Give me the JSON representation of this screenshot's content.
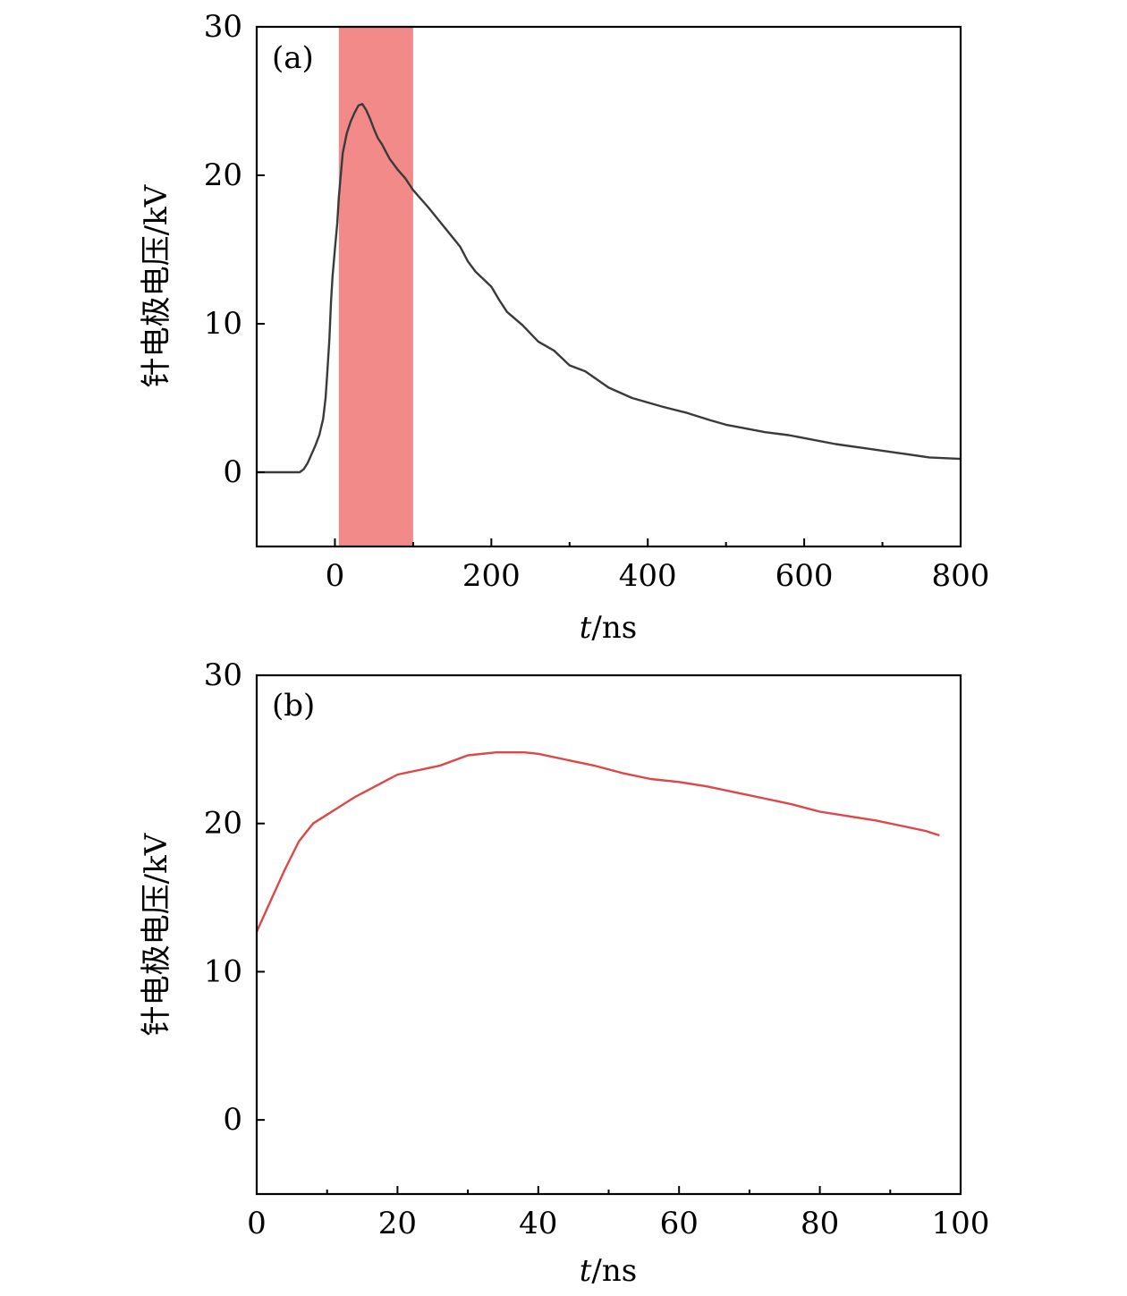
{
  "chart_data": [
    {
      "type": "line",
      "panel_label": "(a)",
      "xlabel_var": "t",
      "xlabel_unit": "/ns",
      "ylabel": "针电极电压/kV",
      "xlim": [
        -100,
        800
      ],
      "ylim": [
        -5,
        30
      ],
      "x_ticks": [
        0,
        200,
        400,
        600,
        800
      ],
      "x_minor_ticks": [
        100,
        300,
        500,
        700
      ],
      "y_ticks": [
        0,
        10,
        20,
        30
      ],
      "highlight_span": {
        "x0": 5,
        "x1": 100,
        "color": "#f38a8a"
      },
      "series": [
        {
          "color": "#3a3a3a",
          "x": [
            -100,
            -60,
            -45,
            -40,
            -35,
            -30,
            -25,
            -20,
            -15,
            -12,
            -10,
            -7,
            -5,
            -3,
            0,
            3,
            5,
            8,
            10,
            15,
            20,
            25,
            30,
            35,
            40,
            45,
            50,
            55,
            60,
            65,
            70,
            80,
            90,
            100,
            120,
            140,
            160,
            170,
            180,
            200,
            210,
            220,
            240,
            260,
            280,
            300,
            320,
            350,
            380,
            400,
            420,
            450,
            480,
            500,
            520,
            550,
            580,
            600,
            640,
            680,
            720,
            760,
            800
          ],
          "y": [
            0,
            0,
            0,
            0.2,
            0.6,
            1.2,
            1.8,
            2.5,
            3.6,
            5.0,
            6.5,
            9.0,
            11.5,
            13.2,
            15.0,
            16.8,
            18.5,
            20.3,
            21.5,
            22.8,
            23.6,
            24.2,
            24.7,
            24.8,
            24.4,
            23.8,
            23.1,
            22.5,
            22.1,
            21.6,
            21.1,
            20.4,
            19.8,
            19.0,
            17.8,
            16.5,
            15.2,
            14.2,
            13.5,
            12.5,
            11.6,
            10.8,
            9.9,
            8.8,
            8.2,
            7.2,
            6.8,
            5.7,
            5.0,
            4.7,
            4.4,
            4.0,
            3.5,
            3.2,
            3.0,
            2.7,
            2.5,
            2.3,
            1.9,
            1.6,
            1.3,
            1.0,
            0.9
          ]
        }
      ]
    },
    {
      "type": "line",
      "panel_label": "(b)",
      "xlabel_var": "t",
      "xlabel_unit": "/ns",
      "ylabel": "针电极电压/kV",
      "xlim": [
        0,
        100
      ],
      "ylim": [
        -5,
        30
      ],
      "x_ticks": [
        0,
        20,
        40,
        60,
        80,
        100
      ],
      "x_minor_ticks": [
        10,
        30,
        50,
        70,
        90
      ],
      "y_ticks": [
        0,
        10,
        20,
        30
      ],
      "series": [
        {
          "color": "#e04646",
          "x": [
            0,
            2,
            4,
            6,
            8,
            10,
            14,
            18,
            20,
            24,
            26,
            30,
            34,
            38,
            40,
            44,
            48,
            52,
            56,
            60,
            64,
            68,
            72,
            76,
            80,
            84,
            88,
            92,
            95,
            97
          ],
          "y": [
            12.7,
            14.8,
            16.9,
            18.8,
            20.0,
            20.6,
            21.8,
            22.8,
            23.3,
            23.7,
            23.9,
            24.6,
            24.8,
            24.8,
            24.7,
            24.3,
            23.9,
            23.4,
            23.0,
            22.8,
            22.5,
            22.1,
            21.7,
            21.3,
            20.8,
            20.5,
            20.2,
            19.8,
            19.5,
            19.2
          ]
        }
      ]
    }
  ]
}
